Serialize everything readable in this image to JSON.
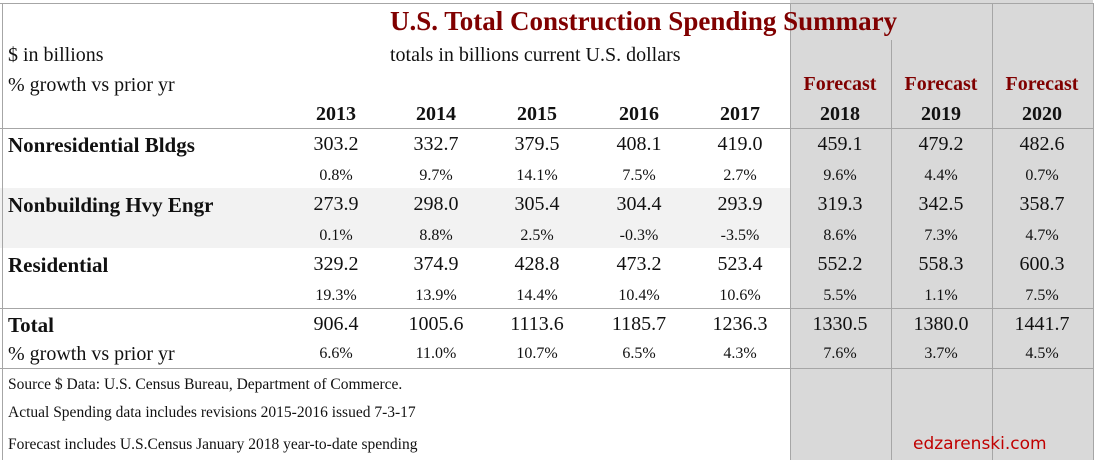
{
  "title": "U.S. Total Construction Spending Summary",
  "units_label": "$ in billions",
  "growth_label": "% growth vs prior yr",
  "subtitle": "totals in billions current U.S. dollars",
  "forecast_label": "Forecast",
  "years": [
    "2013",
    "2014",
    "2015",
    "2016",
    "2017",
    "2018",
    "2019",
    "2020"
  ],
  "forecast_flags": [
    false,
    false,
    false,
    false,
    false,
    true,
    true,
    true
  ],
  "rows": [
    {
      "label": "Nonresidential Bldgs",
      "values": [
        "303.2",
        "332.7",
        "379.5",
        "408.1",
        "419.0",
        "459.1",
        "479.2",
        "482.6"
      ],
      "growth": [
        "0.8%",
        "9.7%",
        "14.1%",
        "7.5%",
        "2.7%",
        "9.6%",
        "4.4%",
        "0.7%"
      ]
    },
    {
      "label": "Nonbuilding Hvy Engr",
      "values": [
        "273.9",
        "298.0",
        "305.4",
        "304.4",
        "293.9",
        "319.3",
        "342.5",
        "358.7"
      ],
      "growth": [
        "0.1%",
        "8.8%",
        "2.5%",
        "-0.3%",
        "-3.5%",
        "8.6%",
        "7.3%",
        "4.7%"
      ]
    },
    {
      "label": "Residential",
      "values": [
        "329.2",
        "374.9",
        "428.8",
        "473.2",
        "523.4",
        "552.2",
        "558.3",
        "600.3"
      ],
      "growth": [
        "19.3%",
        "13.9%",
        "14.4%",
        "10.4%",
        "10.6%",
        "5.5%",
        "1.1%",
        "7.5%"
      ]
    }
  ],
  "total": {
    "label": "Total",
    "values": [
      "906.4",
      "1005.6",
      "1113.6",
      "1185.7",
      "1236.3",
      "1330.5",
      "1380.0",
      "1441.7"
    ],
    "growth_label": "% growth vs prior yr",
    "growth": [
      "6.6%",
      "11.0%",
      "10.7%",
      "6.5%",
      "4.3%",
      "7.6%",
      "3.7%",
      "4.5%"
    ]
  },
  "notes": [
    "Source $ Data: U.S. Census Bureau, Department of Commerce.",
    "Actual Spending data includes revisions 2015-2016 issued 7-3-17",
    "Forecast includes U.S.Census January 2018 year-to-date spending"
  ],
  "brand": "edzarenski.com",
  "colors": {
    "title": "#800000",
    "forecast_shade": "#d9d9d9",
    "band": "#f2f2f2",
    "brand": "#c00000"
  }
}
